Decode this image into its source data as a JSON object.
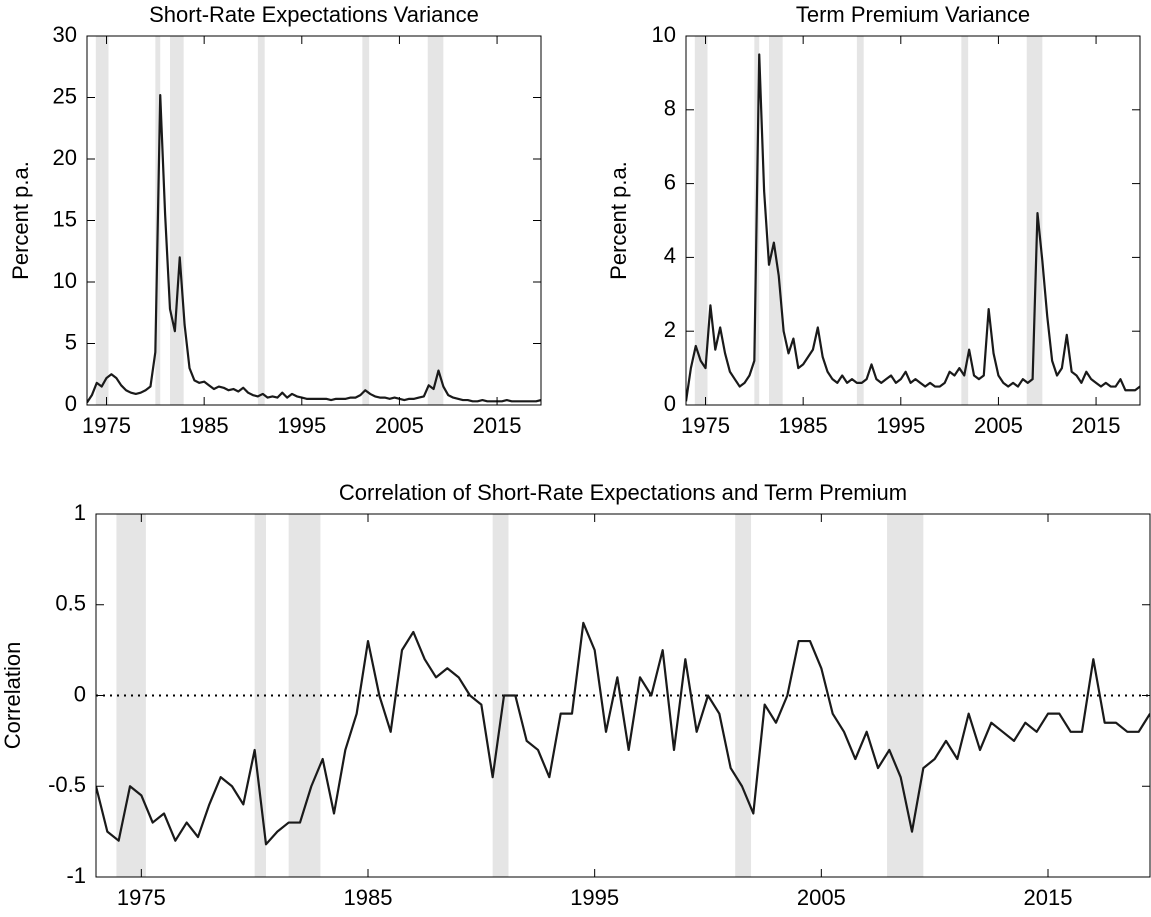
{
  "chart_data": [
    {
      "type": "line",
      "title": "Short-Rate Expectations Variance",
      "y_label": "Percent p.a.",
      "xlim": [
        1973,
        2019.5
      ],
      "xticks": [
        1975,
        1985,
        1995,
        2005,
        2015
      ],
      "ylim": [
        0,
        30
      ],
      "yticks": [
        0,
        5,
        10,
        15,
        20,
        25,
        30
      ],
      "shaded_periods": [
        [
          1973.9,
          1975.2
        ],
        [
          1980.0,
          1980.5
        ],
        [
          1981.5,
          1982.9
        ],
        [
          1990.5,
          1991.2
        ],
        [
          2001.2,
          2001.9
        ],
        [
          2007.9,
          2009.5
        ]
      ],
      "shade_color": "#e5e5e5",
      "x": [
        1973,
        1973.5,
        1974,
        1974.5,
        1975,
        1975.5,
        1976,
        1976.5,
        1977,
        1977.5,
        1978,
        1978.5,
        1979,
        1979.5,
        1980,
        1980.5,
        1981,
        1981.5,
        1982,
        1982.5,
        1983,
        1983.5,
        1984,
        1984.5,
        1985,
        1985.5,
        1986,
        1986.5,
        1987,
        1987.5,
        1988,
        1988.5,
        1989,
        1989.5,
        1990,
        1990.5,
        1991,
        1991.5,
        1992,
        1992.5,
        1993,
        1993.5,
        1994,
        1994.5,
        1995,
        1995.5,
        1996,
        1996.5,
        1997,
        1997.5,
        1998,
        1998.5,
        1999,
        1999.5,
        2000,
        2000.5,
        2001,
        2001.5,
        2002,
        2002.5,
        2003,
        2003.5,
        2004,
        2004.5,
        2005,
        2005.5,
        2006,
        2006.5,
        2007,
        2007.5,
        2008,
        2008.5,
        2009,
        2009.5,
        2010,
        2010.5,
        2011,
        2011.5,
        2012,
        2012.5,
        2013,
        2013.5,
        2014,
        2014.5,
        2015,
        2015.5,
        2016,
        2016.5,
        2017,
        2017.5,
        2018,
        2018.5,
        2019,
        2019.5
      ],
      "series": [
        {
          "color": "#1a1a1a",
          "values": [
            0.2,
            0.8,
            1.8,
            1.5,
            2.2,
            2.5,
            2.2,
            1.6,
            1.2,
            1.0,
            0.9,
            1.0,
            1.2,
            1.5,
            4.3,
            25.2,
            15.5,
            7.8,
            6.0,
            12.0,
            6.5,
            3.0,
            2.0,
            1.8,
            1.9,
            1.6,
            1.3,
            1.5,
            1.4,
            1.2,
            1.3,
            1.1,
            1.4,
            1.0,
            0.8,
            0.7,
            0.9,
            0.6,
            0.7,
            0.6,
            1.0,
            0.6,
            0.9,
            0.7,
            0.6,
            0.5,
            0.5,
            0.5,
            0.5,
            0.5,
            0.4,
            0.5,
            0.5,
            0.5,
            0.6,
            0.6,
            0.8,
            1.2,
            0.9,
            0.7,
            0.6,
            0.6,
            0.5,
            0.6,
            0.5,
            0.4,
            0.5,
            0.5,
            0.6,
            0.7,
            1.6,
            1.3,
            2.8,
            1.5,
            0.8,
            0.6,
            0.5,
            0.4,
            0.4,
            0.3,
            0.3,
            0.4,
            0.3,
            0.3,
            0.3,
            0.3,
            0.4,
            0.3,
            0.3,
            0.3,
            0.3,
            0.3,
            0.3,
            0.4
          ]
        }
      ]
    },
    {
      "type": "line",
      "title": "Term Premium Variance",
      "y_label": "Percent p.a.",
      "xlim": [
        1973,
        2019.5
      ],
      "xticks": [
        1975,
        1985,
        1995,
        2005,
        2015
      ],
      "ylim": [
        0,
        10
      ],
      "yticks": [
        0,
        2,
        4,
        6,
        8,
        10
      ],
      "shaded_periods": [
        [
          1973.9,
          1975.2
        ],
        [
          1980.0,
          1980.5
        ],
        [
          1981.5,
          1982.9
        ],
        [
          1990.5,
          1991.2
        ],
        [
          2001.2,
          2001.9
        ],
        [
          2007.9,
          2009.5
        ]
      ],
      "shade_color": "#e5e5e5",
      "x": [
        1973,
        1973.5,
        1974,
        1974.5,
        1975,
        1975.5,
        1976,
        1976.5,
        1977,
        1977.5,
        1978,
        1978.5,
        1979,
        1979.5,
        1980,
        1980.5,
        1981,
        1981.5,
        1982,
        1982.5,
        1983,
        1983.5,
        1984,
        1984.5,
        1985,
        1985.5,
        1986,
        1986.5,
        1987,
        1987.5,
        1988,
        1988.5,
        1989,
        1989.5,
        1990,
        1990.5,
        1991,
        1991.5,
        1992,
        1992.5,
        1993,
        1993.5,
        1994,
        1994.5,
        1995,
        1995.5,
        1996,
        1996.5,
        1997,
        1997.5,
        1998,
        1998.5,
        1999,
        1999.5,
        2000,
        2000.5,
        2001,
        2001.5,
        2002,
        2002.5,
        2003,
        2003.5,
        2004,
        2004.5,
        2005,
        2005.5,
        2006,
        2006.5,
        2007,
        2007.5,
        2008,
        2008.5,
        2009,
        2009.5,
        2010,
        2010.5,
        2011,
        2011.5,
        2012,
        2012.5,
        2013,
        2013.5,
        2014,
        2014.5,
        2015,
        2015.5,
        2016,
        2016.5,
        2017,
        2017.5,
        2018,
        2018.5,
        2019,
        2019.5
      ],
      "series": [
        {
          "color": "#1a1a1a",
          "values": [
            0.1,
            1.0,
            1.6,
            1.2,
            1.0,
            2.7,
            1.5,
            2.1,
            1.4,
            0.9,
            0.7,
            0.5,
            0.6,
            0.8,
            1.2,
            9.5,
            5.8,
            3.8,
            4.4,
            3.5,
            2.0,
            1.4,
            1.8,
            1.0,
            1.1,
            1.3,
            1.5,
            2.1,
            1.3,
            0.9,
            0.7,
            0.6,
            0.8,
            0.6,
            0.7,
            0.6,
            0.6,
            0.7,
            1.1,
            0.7,
            0.6,
            0.7,
            0.8,
            0.6,
            0.7,
            0.9,
            0.6,
            0.7,
            0.6,
            0.5,
            0.6,
            0.5,
            0.5,
            0.6,
            0.9,
            0.8,
            1.0,
            0.8,
            1.5,
            0.8,
            0.7,
            0.8,
            2.6,
            1.4,
            0.8,
            0.6,
            0.5,
            0.6,
            0.5,
            0.7,
            0.6,
            0.7,
            5.2,
            3.9,
            2.4,
            1.2,
            0.8,
            1.0,
            1.9,
            0.9,
            0.8,
            0.6,
            0.9,
            0.7,
            0.6,
            0.5,
            0.6,
            0.5,
            0.5,
            0.7,
            0.4,
            0.4,
            0.4,
            0.5
          ]
        }
      ]
    },
    {
      "type": "line",
      "title": "Correlation of Short-Rate Expectations and Term Premium",
      "y_label": "Correlation",
      "xlim": [
        1973,
        2019.5
      ],
      "xticks": [
        1975,
        1985,
        1995,
        2005,
        2015
      ],
      "ylim": [
        -1,
        1
      ],
      "yticks": [
        -1,
        -0.5,
        0,
        0.5,
        1
      ],
      "reference_line": 0,
      "shaded_periods": [
        [
          1973.9,
          1975.2
        ],
        [
          1980.0,
          1980.5
        ],
        [
          1981.5,
          1982.9
        ],
        [
          1990.5,
          1991.2
        ],
        [
          2001.2,
          2001.9
        ],
        [
          2007.9,
          2009.5
        ]
      ],
      "shade_color": "#e5e5e5",
      "x": [
        1973,
        1973.5,
        1974,
        1974.5,
        1975,
        1975.5,
        1976,
        1976.5,
        1977,
        1977.5,
        1978,
        1978.5,
        1979,
        1979.5,
        1980,
        1980.5,
        1981,
        1981.5,
        1982,
        1982.5,
        1983,
        1983.5,
        1984,
        1984.5,
        1985,
        1985.5,
        1986,
        1986.5,
        1987,
        1987.5,
        1988,
        1988.5,
        1989,
        1989.5,
        1990,
        1990.5,
        1991,
        1991.5,
        1992,
        1992.5,
        1993,
        1993.5,
        1994,
        1994.5,
        1995,
        1995.5,
        1996,
        1996.5,
        1997,
        1997.5,
        1998,
        1998.5,
        1999,
        1999.5,
        2000,
        2000.5,
        2001,
        2001.5,
        2002,
        2002.5,
        2003,
        2003.5,
        2004,
        2004.5,
        2005,
        2005.5,
        2006,
        2006.5,
        2007,
        2007.5,
        2008,
        2008.5,
        2009,
        2009.5,
        2010,
        2010.5,
        2011,
        2011.5,
        2012,
        2012.5,
        2013,
        2013.5,
        2014,
        2014.5,
        2015,
        2015.5,
        2016,
        2016.5,
        2017,
        2017.5,
        2018,
        2018.5,
        2019,
        2019.5
      ],
      "series": [
        {
          "color": "#1a1a1a",
          "values": [
            -0.5,
            -0.75,
            -0.8,
            -0.5,
            -0.55,
            -0.7,
            -0.65,
            -0.8,
            -0.7,
            -0.78,
            -0.6,
            -0.45,
            -0.5,
            -0.6,
            -0.3,
            -0.82,
            -0.75,
            -0.7,
            -0.7,
            -0.5,
            -0.35,
            -0.65,
            -0.3,
            -0.1,
            0.3,
            0.0,
            -0.2,
            0.25,
            0.35,
            0.2,
            0.1,
            0.15,
            0.1,
            0.0,
            -0.05,
            -0.45,
            0.0,
            0.0,
            -0.25,
            -0.3,
            -0.45,
            -0.1,
            -0.1,
            0.4,
            0.25,
            -0.2,
            0.1,
            -0.3,
            0.1,
            0.0,
            0.25,
            -0.3,
            0.2,
            -0.2,
            0.0,
            -0.1,
            -0.4,
            -0.5,
            -0.65,
            -0.05,
            -0.15,
            0.0,
            0.3,
            0.3,
            0.15,
            -0.1,
            -0.2,
            -0.35,
            -0.2,
            -0.4,
            -0.3,
            -0.45,
            -0.75,
            -0.4,
            -0.35,
            -0.25,
            -0.35,
            -0.1,
            -0.3,
            -0.15,
            -0.2,
            -0.25,
            -0.15,
            -0.2,
            -0.1,
            -0.1,
            -0.2,
            -0.2,
            0.2,
            -0.15,
            -0.15,
            -0.2,
            -0.2,
            -0.1
          ]
        }
      ]
    }
  ]
}
